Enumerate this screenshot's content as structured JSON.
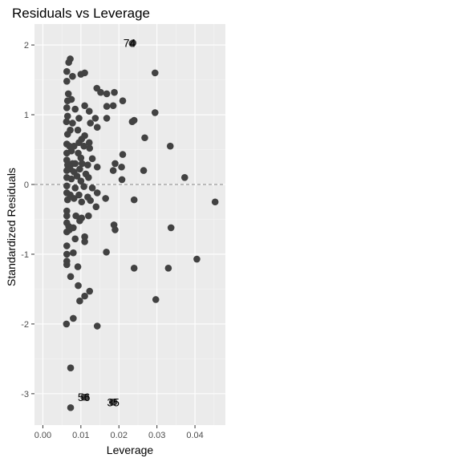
{
  "chart_data": {
    "type": "scatter",
    "title": "Residuals vs Leverage",
    "xlabel": "Leverage",
    "ylabel": "Standardized Residuals",
    "xlim": [
      -0.0022,
      0.048
    ],
    "ylim": [
      -3.45,
      2.3
    ],
    "x_ticks": [
      0.0,
      0.01,
      0.02,
      0.03,
      0.04
    ],
    "x_tick_labels": [
      "0.00",
      "0.01",
      "0.02",
      "0.03",
      "0.04"
    ],
    "y_ticks": [
      2,
      1,
      0,
      -1,
      -2,
      -3
    ],
    "y_tick_labels": [
      "2",
      "1",
      "0",
      "-1",
      "-2",
      "-3"
    ],
    "reference_line_y": 0,
    "grid": true,
    "colors": {
      "panel_background": "#ebebeb",
      "grid_major": "#ffffff",
      "grid_minor": "#f5f5f5",
      "point": "#424242",
      "reference_line": "#888888"
    },
    "points": [
      {
        "x": 0.0237,
        "y": 2.03
      },
      {
        "x": 0.0235,
        "y": 2.02
      },
      {
        "x": 0.0072,
        "y": 1.8
      },
      {
        "x": 0.0068,
        "y": 1.75
      },
      {
        "x": 0.0063,
        "y": 1.62
      },
      {
        "x": 0.0078,
        "y": 1.55
      },
      {
        "x": 0.0063,
        "y": 1.48
      },
      {
        "x": 0.01,
        "y": 1.58
      },
      {
        "x": 0.011,
        "y": 1.6
      },
      {
        "x": 0.0295,
        "y": 1.6
      },
      {
        "x": 0.0067,
        "y": 1.3
      },
      {
        "x": 0.0063,
        "y": 1.1
      },
      {
        "x": 0.0075,
        "y": 1.22
      },
      {
        "x": 0.0065,
        "y": 1.2
      },
      {
        "x": 0.0142,
        "y": 1.38
      },
      {
        "x": 0.0152,
        "y": 1.32
      },
      {
        "x": 0.0168,
        "y": 1.3
      },
      {
        "x": 0.0188,
        "y": 1.32
      },
      {
        "x": 0.011,
        "y": 1.13
      },
      {
        "x": 0.0122,
        "y": 1.05
      },
      {
        "x": 0.0085,
        "y": 1.08
      },
      {
        "x": 0.0168,
        "y": 1.12
      },
      {
        "x": 0.0185,
        "y": 1.13
      },
      {
        "x": 0.021,
        "y": 1.2
      },
      {
        "x": 0.0295,
        "y": 1.03
      },
      {
        "x": 0.0138,
        "y": 0.95
      },
      {
        "x": 0.0065,
        "y": 0.98
      },
      {
        "x": 0.0095,
        "y": 0.95
      },
      {
        "x": 0.0078,
        "y": 0.88
      },
      {
        "x": 0.0062,
        "y": 0.9
      },
      {
        "x": 0.0125,
        "y": 0.88
      },
      {
        "x": 0.0143,
        "y": 0.82
      },
      {
        "x": 0.0168,
        "y": 0.95
      },
      {
        "x": 0.0235,
        "y": 0.9
      },
      {
        "x": 0.024,
        "y": 0.92
      },
      {
        "x": 0.0072,
        "y": 0.78
      },
      {
        "x": 0.0092,
        "y": 0.78
      },
      {
        "x": 0.0065,
        "y": 0.72
      },
      {
        "x": 0.011,
        "y": 0.7
      },
      {
        "x": 0.0102,
        "y": 0.65
      },
      {
        "x": 0.0095,
        "y": 0.6
      },
      {
        "x": 0.0122,
        "y": 0.6
      },
      {
        "x": 0.0268,
        "y": 0.67
      },
      {
        "x": 0.0063,
        "y": 0.58
      },
      {
        "x": 0.007,
        "y": 0.55
      },
      {
        "x": 0.0082,
        "y": 0.55
      },
      {
        "x": 0.0108,
        "y": 0.55
      },
      {
        "x": 0.0123,
        "y": 0.52
      },
      {
        "x": 0.0075,
        "y": 0.48
      },
      {
        "x": 0.0063,
        "y": 0.45
      },
      {
        "x": 0.0093,
        "y": 0.45
      },
      {
        "x": 0.0335,
        "y": 0.55
      },
      {
        "x": 0.0063,
        "y": 0.35
      },
      {
        "x": 0.0078,
        "y": 0.3
      },
      {
        "x": 0.01,
        "y": 0.38
      },
      {
        "x": 0.013,
        "y": 0.37
      },
      {
        "x": 0.021,
        "y": 0.43
      },
      {
        "x": 0.0065,
        "y": 0.28
      },
      {
        "x": 0.0072,
        "y": 0.22
      },
      {
        "x": 0.0085,
        "y": 0.3
      },
      {
        "x": 0.0103,
        "y": 0.3
      },
      {
        "x": 0.0118,
        "y": 0.28
      },
      {
        "x": 0.0143,
        "y": 0.25
      },
      {
        "x": 0.019,
        "y": 0.3
      },
      {
        "x": 0.0063,
        "y": 0.2
      },
      {
        "x": 0.0082,
        "y": 0.18
      },
      {
        "x": 0.0097,
        "y": 0.22
      },
      {
        "x": 0.0113,
        "y": 0.15
      },
      {
        "x": 0.0185,
        "y": 0.2
      },
      {
        "x": 0.0207,
        "y": 0.25
      },
      {
        "x": 0.0265,
        "y": 0.2
      },
      {
        "x": 0.0063,
        "y": 0.1
      },
      {
        "x": 0.0075,
        "y": 0.08
      },
      {
        "x": 0.009,
        "y": 0.12
      },
      {
        "x": 0.01,
        "y": 0.05
      },
      {
        "x": 0.012,
        "y": 0.1
      },
      {
        "x": 0.0208,
        "y": 0.07
      },
      {
        "x": 0.0373,
        "y": 0.1
      },
      {
        "x": 0.0063,
        "y": -0.02
      },
      {
        "x": 0.0085,
        "y": -0.05
      },
      {
        "x": 0.0108,
        "y": -0.03
      },
      {
        "x": 0.013,
        "y": -0.05
      },
      {
        "x": 0.0063,
        "y": -0.12
      },
      {
        "x": 0.0072,
        "y": -0.15
      },
      {
        "x": 0.0095,
        "y": -0.15
      },
      {
        "x": 0.0118,
        "y": -0.18
      },
      {
        "x": 0.0143,
        "y": -0.12
      },
      {
        "x": 0.0065,
        "y": -0.22
      },
      {
        "x": 0.0082,
        "y": -0.2
      },
      {
        "x": 0.0102,
        "y": -0.25
      },
      {
        "x": 0.0125,
        "y": -0.23
      },
      {
        "x": 0.0165,
        "y": -0.2
      },
      {
        "x": 0.024,
        "y": -0.22
      },
      {
        "x": 0.0453,
        "y": -0.25
      },
      {
        "x": 0.014,
        "y": -0.32
      },
      {
        "x": 0.0063,
        "y": -0.38
      },
      {
        "x": 0.0063,
        "y": -0.45
      },
      {
        "x": 0.0087,
        "y": -0.45
      },
      {
        "x": 0.0102,
        "y": -0.48
      },
      {
        "x": 0.0097,
        "y": -0.52
      },
      {
        "x": 0.012,
        "y": -0.45
      },
      {
        "x": 0.0063,
        "y": -0.55
      },
      {
        "x": 0.0068,
        "y": -0.6
      },
      {
        "x": 0.008,
        "y": -0.62
      },
      {
        "x": 0.0063,
        "y": -0.68
      },
      {
        "x": 0.007,
        "y": -0.65
      },
      {
        "x": 0.0187,
        "y": -0.58
      },
      {
        "x": 0.019,
        "y": -0.65
      },
      {
        "x": 0.0337,
        "y": -0.62
      },
      {
        "x": 0.011,
        "y": -0.75
      },
      {
        "x": 0.011,
        "y": -0.82
      },
      {
        "x": 0.0085,
        "y": -0.78
      },
      {
        "x": 0.0063,
        "y": -0.88
      },
      {
        "x": 0.008,
        "y": -0.98
      },
      {
        "x": 0.0063,
        "y": -1.0
      },
      {
        "x": 0.0167,
        "y": -0.97
      },
      {
        "x": 0.0405,
        "y": -1.07
      },
      {
        "x": 0.0063,
        "y": -1.1
      },
      {
        "x": 0.0063,
        "y": -1.15
      },
      {
        "x": 0.0092,
        "y": -1.18
      },
      {
        "x": 0.024,
        "y": -1.2
      },
      {
        "x": 0.033,
        "y": -1.2
      },
      {
        "x": 0.0073,
        "y": -1.32
      },
      {
        "x": 0.0093,
        "y": -1.45
      },
      {
        "x": 0.0123,
        "y": -1.53
      },
      {
        "x": 0.011,
        "y": -1.6
      },
      {
        "x": 0.0097,
        "y": -1.67
      },
      {
        "x": 0.0297,
        "y": -1.65
      },
      {
        "x": 0.008,
        "y": -1.92
      },
      {
        "x": 0.0062,
        "y": -2.0
      },
      {
        "x": 0.0143,
        "y": -2.03
      },
      {
        "x": 0.0073,
        "y": -2.63
      },
      {
        "x": 0.0113,
        "y": -3.05
      },
      {
        "x": 0.0108,
        "y": -3.05
      },
      {
        "x": 0.0187,
        "y": -3.12
      },
      {
        "x": 0.0183,
        "y": -3.12
      },
      {
        "x": 0.0073,
        "y": -3.2
      }
    ],
    "labels": [
      {
        "text": "74",
        "x": 0.0228,
        "y": 2.03
      },
      {
        "text": "56",
        "x": 0.0108,
        "y": -3.05
      },
      {
        "text": "35",
        "x": 0.0185,
        "y": -3.12
      }
    ]
  }
}
